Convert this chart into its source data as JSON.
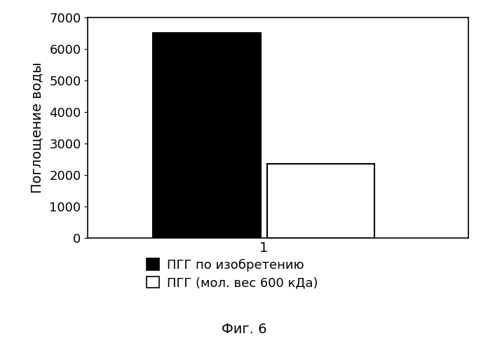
{
  "bar1_value": 6500,
  "bar2_value": 2350,
  "bar_colors": [
    "#000000",
    "#ffffff"
  ],
  "bar_edgecolors": [
    "#000000",
    "#000000"
  ],
  "x_tick_label": "1",
  "ylabel": "Поглощение воды",
  "ylim": [
    0,
    7000
  ],
  "yticks": [
    0,
    1000,
    2000,
    3000,
    4000,
    5000,
    6000,
    7000
  ],
  "legend_labels": [
    "ПГГ по изобретению",
    "ПГГ (мол. вес 600 кДа)"
  ],
  "legend_colors": [
    "#000000",
    "#ffffff"
  ],
  "caption": "Фиг. 6",
  "background_color": "#ffffff",
  "bar_width": 0.38,
  "ylabel_fontsize": 14,
  "tick_fontsize": 13,
  "legend_fontsize": 13,
  "caption_fontsize": 14
}
